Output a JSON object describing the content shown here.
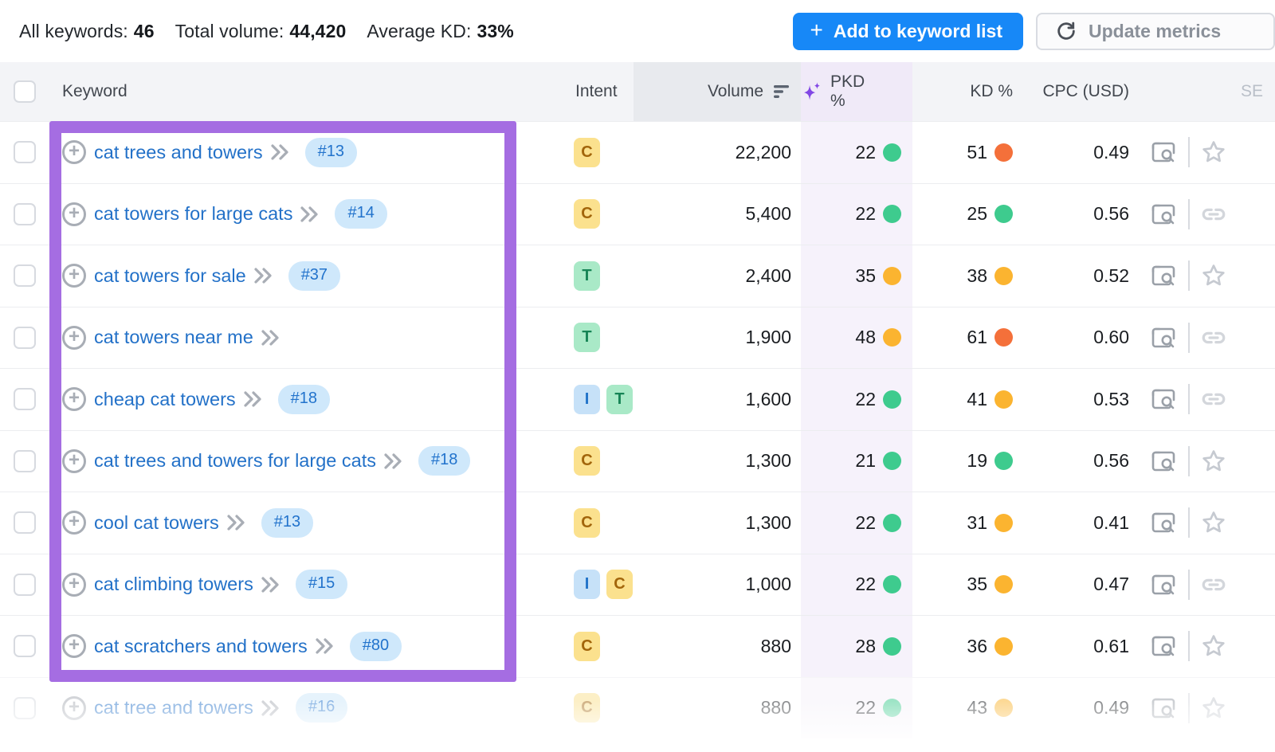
{
  "colors": {
    "accent_blue": "#1788f7",
    "link_blue": "#2371c8",
    "badge_bg": "#cfe8fb",
    "badge_text": "#2273cc",
    "intent_c_bg": "#fbe18e",
    "intent_c_text": "#a2650b",
    "intent_t_bg": "#a9e9c7",
    "intent_t_text": "#168455",
    "intent_i_bg": "#c6e1f8",
    "intent_i_text": "#2173c9",
    "dot_green": "#3ecb8e",
    "dot_yellow": "#fbb430",
    "dot_orange": "#f4703a",
    "purple_box": "#a56de2",
    "pkd_band": "#f6f2fb",
    "pkd_head": "#f0eaf8",
    "header_bg": "#f3f4f7",
    "volume_head_bg": "#e8eaee"
  },
  "icons": {
    "add": "plus",
    "refresh": "circular-arrow",
    "volume_sort": "descending-bars",
    "pkd_sparkle": "ai-sparkle",
    "keyword_expand": "plus-circle",
    "keyword_drill": "double-chevron-right",
    "serp": "window-magnifier",
    "favorite": "star-outline",
    "link": "chain-link"
  },
  "topbar": {
    "stats": [
      {
        "label": "All keywords:",
        "value": "46"
      },
      {
        "label": "Total volume:",
        "value": "44,420"
      },
      {
        "label": "Average KD:",
        "value": "33%"
      }
    ],
    "add_button_label": "Add to keyword list",
    "update_button_label": "Update metrics"
  },
  "table": {
    "headers": {
      "keyword": "Keyword",
      "intent": "Intent",
      "volume": "Volume",
      "pkd": "PKD %",
      "kd": "KD %",
      "cpc": "CPC (USD)",
      "se": "SE"
    },
    "rows": [
      {
        "keyword": "cat trees and towers",
        "rank": "#13",
        "intents": [
          "C"
        ],
        "volume": "22,200",
        "pkd": "22",
        "pkd_level": "green",
        "kd": "51",
        "kd_level": "orange",
        "cpc": "0.49",
        "action": "star",
        "faded": false
      },
      {
        "keyword": "cat towers for large cats",
        "rank": "#14",
        "intents": [
          "C"
        ],
        "volume": "5,400",
        "pkd": "22",
        "pkd_level": "green",
        "kd": "25",
        "kd_level": "green",
        "cpc": "0.56",
        "action": "link",
        "faded": false
      },
      {
        "keyword": "cat towers for sale",
        "rank": "#37",
        "intents": [
          "T"
        ],
        "volume": "2,400",
        "pkd": "35",
        "pkd_level": "yellow",
        "kd": "38",
        "kd_level": "yellow",
        "cpc": "0.52",
        "action": "star",
        "faded": false
      },
      {
        "keyword": "cat towers near me",
        "rank": null,
        "intents": [
          "T"
        ],
        "volume": "1,900",
        "pkd": "48",
        "pkd_level": "yellow",
        "kd": "61",
        "kd_level": "orange",
        "cpc": "0.60",
        "action": "link",
        "faded": false
      },
      {
        "keyword": "cheap cat towers",
        "rank": "#18",
        "intents": [
          "I",
          "T"
        ],
        "volume": "1,600",
        "pkd": "22",
        "pkd_level": "green",
        "kd": "41",
        "kd_level": "yellow",
        "cpc": "0.53",
        "action": "link",
        "faded": false
      },
      {
        "keyword": "cat trees and towers for large cats",
        "rank": "#18",
        "intents": [
          "C"
        ],
        "volume": "1,300",
        "pkd": "21",
        "pkd_level": "green",
        "kd": "19",
        "kd_level": "green",
        "cpc": "0.56",
        "action": "star",
        "faded": false
      },
      {
        "keyword": "cool cat towers",
        "rank": "#13",
        "intents": [
          "C"
        ],
        "volume": "1,300",
        "pkd": "22",
        "pkd_level": "green",
        "kd": "31",
        "kd_level": "yellow",
        "cpc": "0.41",
        "action": "star",
        "faded": false
      },
      {
        "keyword": "cat climbing towers",
        "rank": "#15",
        "intents": [
          "I",
          "C"
        ],
        "volume": "1,000",
        "pkd": "22",
        "pkd_level": "green",
        "kd": "35",
        "kd_level": "yellow",
        "cpc": "0.47",
        "action": "link",
        "faded": false
      },
      {
        "keyword": "cat scratchers and towers",
        "rank": "#80",
        "intents": [
          "C"
        ],
        "volume": "880",
        "pkd": "28",
        "pkd_level": "green",
        "kd": "36",
        "kd_level": "yellow",
        "cpc": "0.61",
        "action": "star",
        "faded": false
      },
      {
        "keyword": "cat tree and towers",
        "rank": "#16",
        "intents": [
          "C"
        ],
        "volume": "880",
        "pkd": "22",
        "pkd_level": "green",
        "kd": "43",
        "kd_level": "yellow",
        "cpc": "0.49",
        "action": "star",
        "faded": true
      }
    ]
  }
}
